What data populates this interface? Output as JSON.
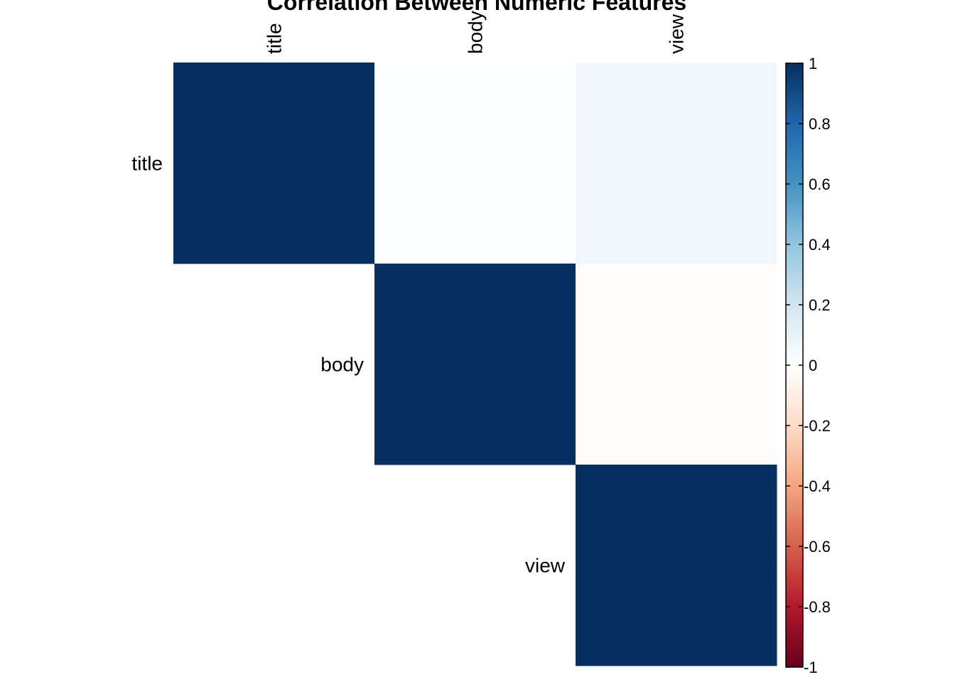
{
  "chart_data": {
    "type": "heatmap",
    "title": "Correlation Between Numeric Features",
    "variables": [
      "title",
      "body",
      "view"
    ],
    "layout": "upper-triangle",
    "cells": [
      {
        "row": "title",
        "col": "title",
        "value": 1.0
      },
      {
        "row": "title",
        "col": "body",
        "value": 0.01
      },
      {
        "row": "title",
        "col": "view",
        "value": 0.06
      },
      {
        "row": "body",
        "col": "body",
        "value": 1.0
      },
      {
        "row": "body",
        "col": "view",
        "value": -0.01
      },
      {
        "row": "view",
        "col": "view",
        "value": 1.0
      }
    ],
    "colorbar": {
      "range": [
        -1,
        1
      ],
      "ticks": [
        "1",
        "0.8",
        "0.6",
        "0.4",
        "0.2",
        "0",
        "-0.2",
        "-0.4",
        "-0.6",
        "-0.8",
        "-1"
      ],
      "tick_values": [
        1,
        0.8,
        0.6,
        0.4,
        0.2,
        0,
        -0.2,
        -0.4,
        -0.6,
        -0.8,
        -1
      ],
      "colors": [
        "#67001F",
        "#B2182B",
        "#D6604D",
        "#F4A582",
        "#FDDBC7",
        "#FFFFFF",
        "#D1E5F0",
        "#92C5DE",
        "#4393C3",
        "#2166AC",
        "#053061"
      ]
    }
  }
}
